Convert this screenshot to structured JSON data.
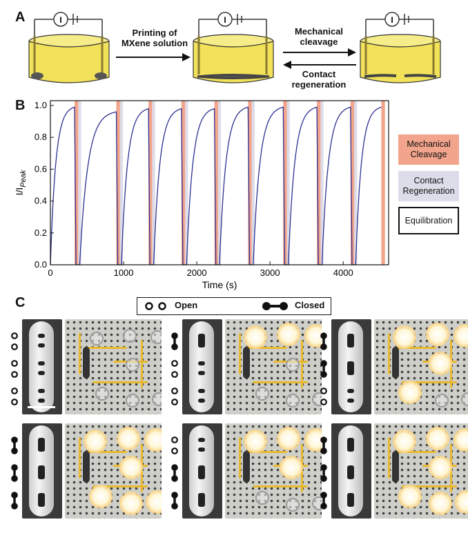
{
  "panel_labels": {
    "a": "A",
    "b": "B",
    "c": "C"
  },
  "panel_a": {
    "arrow1_label": "Printing of MXene solution",
    "arrow2_label": "Mechanical cleavage",
    "arrow3_label": "Contact regeneration",
    "source_symbol": "I",
    "colors": {
      "solution": "#f2e25a",
      "electrode": "#555555",
      "beaker_rim": "#333333"
    }
  },
  "legend": {
    "mechanical": "Mechanical Cleavage",
    "contact": "Contact Regeneration",
    "equilibration": "Equilibration",
    "colors": {
      "mechanical": "#f2a48c",
      "contact": "#dcdde9",
      "equilibration": "#ffffff"
    }
  },
  "panel_c": {
    "open_label": "Open",
    "closed_label": "Closed",
    "rows": [
      [
        {
          "switches": [
            "open",
            "open",
            "open"
          ],
          "leds_on": 0
        },
        {
          "switches": [
            "closed",
            "open",
            "open"
          ],
          "leds_on": 3
        },
        {
          "switches": [
            "closed",
            "closed",
            "open"
          ],
          "leds_on": 5
        }
      ],
      [
        {
          "switches": [
            "closed",
            "closed",
            "closed"
          ],
          "leds_on": 7
        },
        {
          "switches": [
            "open",
            "closed",
            "closed"
          ],
          "leds_on": 4
        },
        {
          "switches": [
            "closed",
            "closed",
            "closed"
          ],
          "leds_on": 7
        }
      ]
    ]
  },
  "chart_data": {
    "type": "line",
    "xlabel": "Time (s)",
    "ylabel": "I/I_Peak",
    "xlim": [
      0,
      4620
    ],
    "ylim": [
      0,
      1.03
    ],
    "xticks": [
      0,
      1000,
      2000,
      3000,
      4000
    ],
    "yticks": [
      0.0,
      0.2,
      0.4,
      0.6,
      0.8,
      1.0
    ],
    "xtick_labels": [
      "0",
      "1000",
      "2000",
      "3000",
      "4000"
    ],
    "ytick_labels": [
      "0.0",
      "0.2",
      "0.4",
      "0.6",
      "0.8",
      "1.0"
    ],
    "line_color": "#2b2f8f",
    "cleavage_bands": [
      [
        330,
        380
      ],
      [
        900,
        950
      ],
      [
        1340,
        1390
      ],
      [
        1790,
        1840
      ],
      [
        2240,
        2290
      ],
      [
        2700,
        2750
      ],
      [
        3180,
        3230
      ],
      [
        3640,
        3690
      ],
      [
        4100,
        4150
      ],
      [
        4520,
        4570
      ]
    ],
    "regeneration_bands": [
      [
        380,
        420
      ],
      [
        950,
        990
      ],
      [
        1390,
        1430
      ],
      [
        1840,
        1880
      ],
      [
        2290,
        2330
      ],
      [
        2750,
        2790
      ],
      [
        3230,
        3270
      ],
      [
        3690,
        3730
      ],
      [
        4150,
        4190
      ]
    ],
    "segments": [
      {
        "start": 0,
        "end": 330,
        "peak": 1.0
      },
      {
        "start": 400,
        "end": 900,
        "peak": 0.97
      },
      {
        "start": 970,
        "end": 1340,
        "peak": 0.99
      },
      {
        "start": 1410,
        "end": 1790,
        "peak": 0.99
      },
      {
        "start": 1860,
        "end": 2240,
        "peak": 0.99
      },
      {
        "start": 2310,
        "end": 2700,
        "peak": 1.0
      },
      {
        "start": 2770,
        "end": 3180,
        "peak": 1.0
      },
      {
        "start": 3250,
        "end": 3640,
        "peak": 1.0
      },
      {
        "start": 3710,
        "end": 4100,
        "peak": 1.0
      },
      {
        "start": 4170,
        "end": 4520,
        "peak": 1.0
      }
    ]
  }
}
